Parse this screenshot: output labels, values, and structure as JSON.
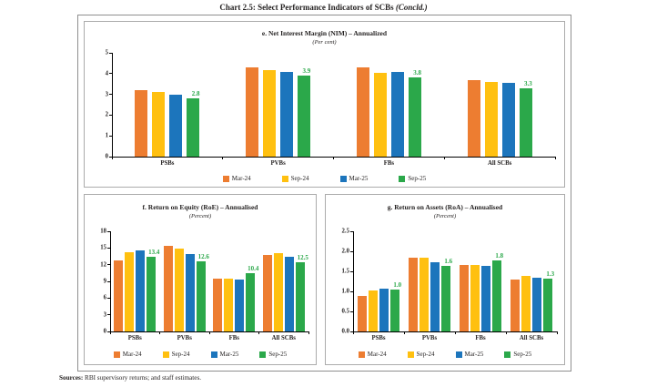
{
  "page": {
    "title_bold": "Chart 2.5: Select Performance Indicators of SCBs",
    "title_italic": "(Concld.)",
    "footer_bold": "Sources:",
    "footer_text": " RBI supervisory returns; and staff estimates."
  },
  "colors": {
    "series": [
      "#ED7D31",
      "#FFC010",
      "#1C75BC",
      "#2BA84A"
    ],
    "data_label": "#2BA84A",
    "axis": "#000000",
    "panel_border": "#ababab"
  },
  "legend": [
    "Mar-24",
    "Sep-24",
    "Mar-25",
    "Sep-25"
  ],
  "chart_data": [
    {
      "id": "nim",
      "type": "bar",
      "title": "e. Net Interest Margin (NIM) – Annualized",
      "subtitle": "(Per cent)",
      "xlabel": "",
      "ylabel": "",
      "categories": [
        "PSBs",
        "PVBs",
        "FBs",
        "All SCBs"
      ],
      "series": [
        {
          "name": "Mar-24",
          "values": [
            3.2,
            4.3,
            4.3,
            3.7
          ]
        },
        {
          "name": "Sep-24",
          "values": [
            3.1,
            4.15,
            4.05,
            3.6
          ]
        },
        {
          "name": "Mar-25",
          "values": [
            3.0,
            4.1,
            4.1,
            3.55
          ]
        },
        {
          "name": "Sep-25",
          "values": [
            2.8,
            3.9,
            3.8,
            3.3
          ]
        }
      ],
      "data_labels": {
        "series": "Sep-25",
        "values": [
          "2.8",
          "3.9",
          "3.8",
          "3.3"
        ]
      },
      "ylim": [
        0,
        5
      ],
      "yticks": [
        "0",
        "1",
        "2",
        "3",
        "4",
        "5"
      ],
      "grid": false,
      "legend_position": "bottom"
    },
    {
      "id": "roe",
      "type": "bar",
      "title": "f. Return on Equity (RoE) – Annualised",
      "subtitle": "(Percent)",
      "xlabel": "",
      "ylabel": "",
      "categories": [
        "PSBs",
        "PVBs",
        "FBs",
        "All SCBs"
      ],
      "series": [
        {
          "name": "Mar-24",
          "values": [
            12.8,
            15.4,
            9.5,
            13.7
          ]
        },
        {
          "name": "Sep-24",
          "values": [
            14.3,
            14.9,
            9.5,
            14.0
          ]
        },
        {
          "name": "Mar-25",
          "values": [
            14.5,
            13.9,
            9.4,
            13.5
          ]
        },
        {
          "name": "Sep-25",
          "values": [
            13.4,
            12.6,
            10.4,
            12.5
          ]
        }
      ],
      "data_labels": {
        "series": "Sep-25",
        "values": [
          "13.4",
          "12.6",
          "10.4",
          "12.5"
        ]
      },
      "ylim": [
        0,
        18
      ],
      "yticks": [
        "0",
        "3",
        "6",
        "9",
        "12",
        "15",
        "18"
      ],
      "grid": false,
      "legend_position": "bottom"
    },
    {
      "id": "roa",
      "type": "bar",
      "title": "g. Return on Assets (RoA) – Annualised",
      "subtitle": "(Percent)",
      "xlabel": "",
      "ylabel": "",
      "categories": [
        "PSBs",
        "PVBs",
        "FBs",
        "All SCBs"
      ],
      "series": [
        {
          "name": "Mar-24",
          "values": [
            0.88,
            1.83,
            1.66,
            1.3
          ]
        },
        {
          "name": "Sep-24",
          "values": [
            1.03,
            1.84,
            1.65,
            1.38
          ]
        },
        {
          "name": "Mar-25",
          "values": [
            1.06,
            1.73,
            1.63,
            1.35
          ]
        },
        {
          "name": "Sep-25",
          "values": [
            1.04,
            1.63,
            1.77,
            1.31
          ]
        }
      ],
      "data_labels": {
        "series": "Sep-25",
        "values": [
          "1.0",
          "1.6",
          "1.8",
          "1.3"
        ]
      },
      "ylim": [
        0,
        2.5
      ],
      "yticks": [
        "0.0",
        "0.5",
        "1.0",
        "1.5",
        "2.0",
        "2.5"
      ],
      "grid": false,
      "legend_position": "bottom"
    }
  ]
}
